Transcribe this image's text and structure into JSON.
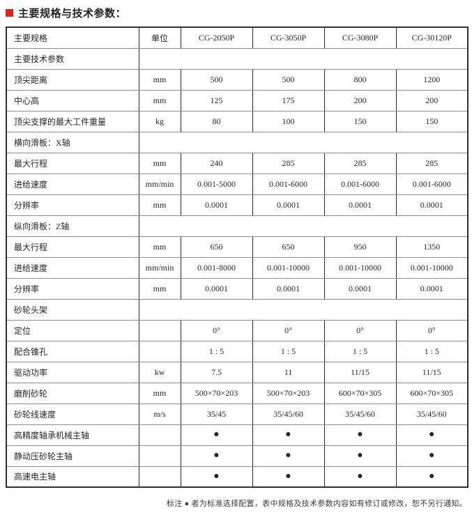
{
  "page": {
    "title": "主要规格与技术参数：",
    "accent_color": "#d9251d",
    "footnote": "标注 ● 者为标准选择配置，表中规格及技术参数内容如有修订或修改，恕不另行通知。"
  },
  "table": {
    "columns": [
      "主要规格",
      "单位",
      "CG-2050P",
      "CG-3050P",
      "CG-3080P",
      "CG-30120P"
    ],
    "rows": [
      {
        "type": "section",
        "label": "主要技术参数"
      },
      {
        "type": "data",
        "label": "顶尖距离",
        "unit": "mm",
        "values": [
          "500",
          "500",
          "800",
          "1200"
        ]
      },
      {
        "type": "data",
        "label": "中心高",
        "unit": "mm",
        "values": [
          "125",
          "175",
          "200",
          "200"
        ]
      },
      {
        "type": "data",
        "label": "顶尖支撑的最大工件重量",
        "unit": "kg",
        "values": [
          "80",
          "100",
          "150",
          "150"
        ]
      },
      {
        "type": "section",
        "label": "横向滑板：X轴"
      },
      {
        "type": "data",
        "label": "最大行程",
        "unit": "mm",
        "values": [
          "240",
          "285",
          "285",
          "285"
        ]
      },
      {
        "type": "data",
        "label": "进给速度",
        "unit": "mm/min",
        "values": [
          "0.001-5000",
          "0.001-6000",
          "0.001-6000",
          "0.001-6000"
        ]
      },
      {
        "type": "data",
        "label": "分辨率",
        "unit": "mm",
        "values": [
          "0.0001",
          "0.0001",
          "0.0001",
          "0.0001"
        ]
      },
      {
        "type": "section",
        "label": "纵向滑板：Z轴"
      },
      {
        "type": "data",
        "label": "最大行程",
        "unit": "mm",
        "values": [
          "650",
          "650",
          "950",
          "1350"
        ]
      },
      {
        "type": "data",
        "label": "进给速度",
        "unit": "mm/min",
        "values": [
          "0.001-8000",
          "0.001-10000",
          "0.001-10000",
          "0.001-10000"
        ]
      },
      {
        "type": "data",
        "label": "分辨率",
        "unit": "mm",
        "values": [
          "0.0001",
          "0.0001",
          "0.0001",
          "0.0001"
        ]
      },
      {
        "type": "section",
        "label": "砂轮头架"
      },
      {
        "type": "data",
        "label": "定位",
        "unit": "",
        "values": [
          "0°",
          "0°",
          "0°",
          "0°"
        ]
      },
      {
        "type": "data",
        "label": "配合锥孔",
        "unit": "",
        "values": [
          "1 : 5",
          "1 : 5",
          "1 : 5",
          "1 : 5"
        ]
      },
      {
        "type": "data",
        "label": "驱动功率",
        "unit": "kw",
        "values": [
          "7.5",
          "11",
          "11/15",
          "11/15"
        ]
      },
      {
        "type": "data",
        "label": "磨削砂轮",
        "unit": "mm",
        "values": [
          "500×70×203",
          "500×70×203",
          "600×70×305",
          "600×70×305"
        ]
      },
      {
        "type": "data",
        "label": "砂轮线速度",
        "unit": "m/s",
        "values": [
          "35/45",
          "35/45/60",
          "35/45/60",
          "35/45/60"
        ]
      },
      {
        "type": "data",
        "label": "高精度轴承机械主轴",
        "unit": "",
        "values": [
          "●",
          "●",
          "●",
          "●"
        ]
      },
      {
        "type": "data",
        "label": "静动压砂轮主轴",
        "unit": "",
        "values": [
          "●",
          "●",
          "●",
          "●"
        ]
      },
      {
        "type": "data",
        "label": "高速电主轴",
        "unit": "",
        "values": [
          "●",
          "●",
          "●",
          "●"
        ]
      }
    ]
  }
}
